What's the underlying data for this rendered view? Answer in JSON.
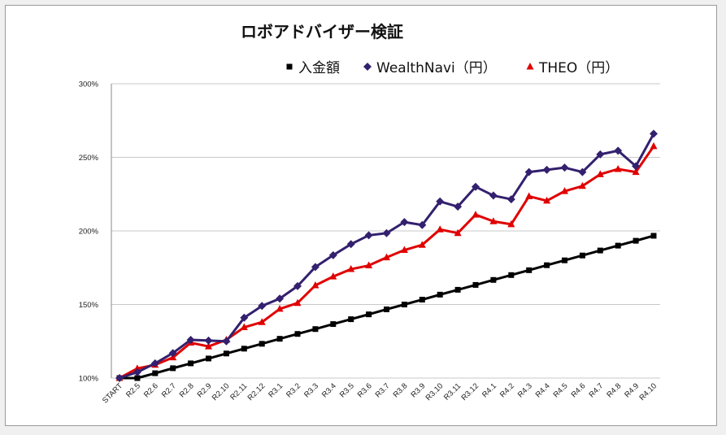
{
  "chart_data": {
    "type": "line",
    "title": "ロボアドバイザー検証",
    "ylim": [
      100,
      300
    ],
    "yticks": [
      100,
      150,
      200,
      250,
      300
    ],
    "ytick_suffix": "%",
    "grid": true,
    "legend_position": "top",
    "categories": [
      "START",
      "R2.5",
      "R2.6",
      "R2.7",
      "R2.8",
      "R2.9",
      "R2.10",
      "R2.11",
      "R2.12",
      "R3.1",
      "R3.2",
      "R3.3",
      "R3.4",
      "R3.5",
      "R3.6",
      "R3.7",
      "R3.8",
      "R3.9",
      "R3.10",
      "R3.11",
      "R3.12",
      "R4.1",
      "R4.2",
      "R4.3",
      "R4.4",
      "R4.5",
      "R4.6",
      "R4.7",
      "R4.8",
      "R4.9",
      "R4.10"
    ],
    "series": [
      {
        "name": "入金額",
        "color": "#000000",
        "marker": "square",
        "values": [
          100,
          100,
          103.3,
          106.7,
          110,
          113.3,
          116.7,
          120,
          123.3,
          126.7,
          130,
          133.3,
          136.7,
          140,
          143.3,
          146.7,
          150,
          153.3,
          156.7,
          160,
          163.3,
          166.7,
          170,
          173.3,
          176.7,
          180,
          183.3,
          186.7,
          190,
          193.3,
          196.7
        ]
      },
      {
        "name": "WealthNavi（円）",
        "color": "#33206e",
        "marker": "diamond",
        "values": [
          100,
          104,
          110,
          117,
          126,
          125.5,
          125,
          141,
          149,
          154,
          162.5,
          175.5,
          183.5,
          191,
          197,
          198.5,
          206,
          204,
          220,
          216.5,
          230,
          224,
          221.5,
          240,
          241.5,
          243,
          240,
          252,
          254.5,
          244,
          266
        ]
      },
      {
        "name": "THEO（円）",
        "color": "#e00000",
        "marker": "triangle",
        "values": [
          100,
          106.5,
          109,
          114,
          124,
          121.5,
          126,
          134.5,
          138,
          147,
          151,
          163,
          169,
          174,
          176.5,
          182,
          187,
          190.5,
          201,
          198.5,
          211,
          206.5,
          204.5,
          223.5,
          220.5,
          227,
          230.5,
          238.5,
          242,
          240,
          257.5
        ]
      }
    ]
  }
}
